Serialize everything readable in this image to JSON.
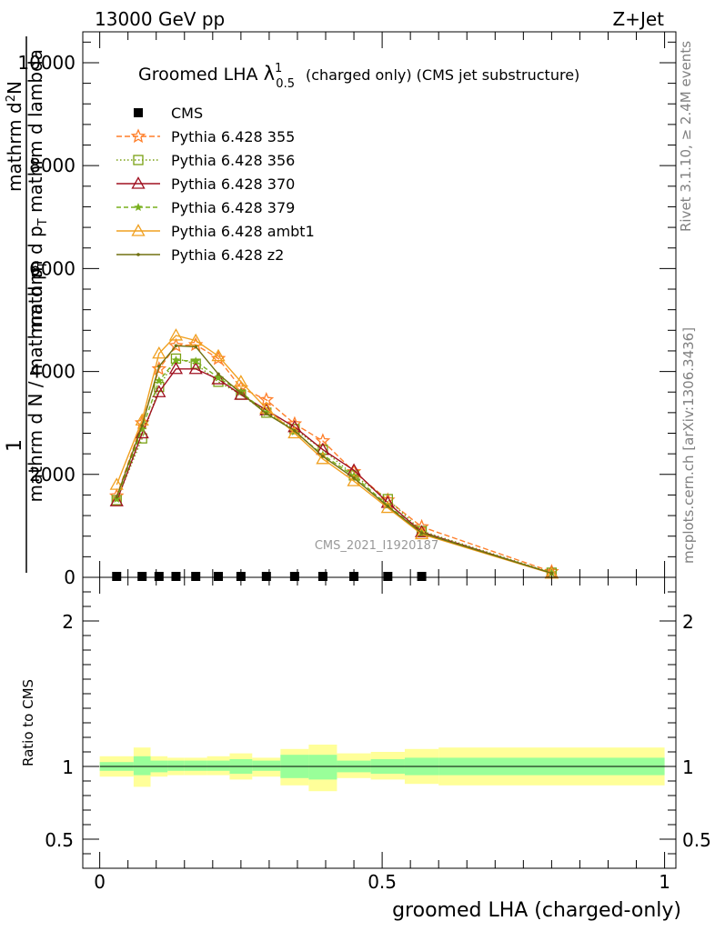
{
  "header": {
    "energy_label": "13000 GeV pp",
    "process_label": "Z+Jet"
  },
  "side_notes": {
    "rivet": "Rivet 3.1.10, ≥ 2.4M events",
    "mcplots": "mcplots.cern.ch [arXiv:1306.3436]"
  },
  "watermark": "CMS_2021_I1920187",
  "chart_data": [
    {
      "type": "line",
      "title_main": "Groomed LHA ",
      "title_symbol": "λ",
      "title_sup": "1",
      "title_sub": "0.5",
      "title_suffix": "(charged only) (CMS jet substructure)",
      "ylabel_left_num": "1",
      "ylabel_left_den": "mathrm d N / mathrm d p",
      "ylabel_left_den_sub": "T",
      "ylabel_right_num": "mathrm d",
      "ylabel_right_num_sup": "2",
      "ylabel_right_num_tail": "N",
      "ylabel_right_den": "mathrm d p",
      "ylabel_right_den_sub": "T",
      "ylabel_right_den_tail": " mathrm d lambda",
      "ylim": [
        0,
        10600
      ],
      "xlim": [
        -0.03,
        1.02
      ],
      "yticks": [
        {
          "value": 0,
          "label": "0"
        },
        {
          "value": 2000,
          "label": "2000"
        },
        {
          "value": 4000,
          "label": "4000"
        },
        {
          "value": 6000,
          "label": "6000"
        },
        {
          "value": 8000,
          "label": "8000"
        },
        {
          "value": 10000,
          "label": "10000"
        }
      ],
      "legend_position": "top-left",
      "cms_x": [
        0.03,
        0.075,
        0.105,
        0.135,
        0.17,
        0.21,
        0.25,
        0.295,
        0.345,
        0.395,
        0.45,
        0.51,
        0.57
      ],
      "cms_y": [
        0,
        0,
        0,
        0,
        0,
        0,
        0,
        0,
        0,
        0,
        0,
        0,
        0
      ],
      "x": [
        0.03,
        0.075,
        0.105,
        0.135,
        0.17,
        0.21,
        0.25,
        0.295,
        0.345,
        0.395,
        0.45,
        0.51,
        0.57,
        0.8
      ],
      "series": [
        {
          "name": "CMS",
          "color": "#000000",
          "marker": "square-filled",
          "dash": "none"
        },
        {
          "name": "Pythia 6.428 355",
          "color": "#ff7f2a",
          "marker": "star",
          "dash": "6,3",
          "values": [
            1580,
            3000,
            4050,
            4500,
            4520,
            4250,
            3680,
            3450,
            2980,
            2650,
            2050,
            1500,
            980,
            110
          ]
        },
        {
          "name": "Pythia 6.428 356",
          "color": "#7aa013",
          "marker": "square-open",
          "dash": "1.5,2.5",
          "values": [
            1500,
            2700,
            3700,
            4250,
            4150,
            3800,
            3550,
            3200,
            2880,
            2480,
            1980,
            1520,
            900,
            90
          ]
        },
        {
          "name": "Pythia 6.428 370",
          "color": "#a01020",
          "marker": "triangle-open",
          "dash": "none",
          "values": [
            1480,
            2800,
            3600,
            4050,
            4050,
            3850,
            3550,
            3250,
            2920,
            2480,
            2080,
            1450,
            880,
            80
          ]
        },
        {
          "name": "Pythia 6.428 379",
          "color": "#78b01e",
          "marker": "star-small",
          "dash": "5,3",
          "values": [
            1520,
            2880,
            3820,
            4220,
            4200,
            3880,
            3600,
            3200,
            2830,
            2380,
            1970,
            1400,
            870,
            85
          ]
        },
        {
          "name": "Pythia 6.428 ambt1",
          "color": "#f0a020",
          "marker": "triangle-open",
          "dash": "none",
          "values": [
            1800,
            3050,
            4350,
            4700,
            4600,
            4300,
            3800,
            3280,
            2800,
            2300,
            1870,
            1350,
            840,
            75
          ]
        },
        {
          "name": "Pythia 6.428 z2",
          "color": "#707010",
          "marker": "dot",
          "dash": "none",
          "values": [
            1560,
            2950,
            4100,
            4500,
            4480,
            3950,
            3580,
            3180,
            2850,
            2350,
            1930,
            1380,
            860,
            80
          ]
        }
      ]
    },
    {
      "type": "area",
      "ylabel": "Ratio to CMS",
      "xlabel": "groomed LHA (charged-only)",
      "ylim": [
        0.3,
        2.3
      ],
      "xlim": [
        -0.03,
        1.02
      ],
      "xticks": [
        {
          "value": 0,
          "label": "0"
        },
        {
          "value": 0.5,
          "label": "0.5"
        },
        {
          "value": 1,
          "label": "1"
        }
      ],
      "yticks": [
        {
          "value": 0.5,
          "label": "0.5"
        },
        {
          "value": 1,
          "label": "1"
        },
        {
          "value": 2,
          "label": "2"
        }
      ],
      "reference_line": 1,
      "bin_edges": [
        0,
        0.06,
        0.09,
        0.12,
        0.15,
        0.19,
        0.23,
        0.27,
        0.32,
        0.37,
        0.42,
        0.48,
        0.54,
        0.6,
        1.0
      ],
      "band_inner_lo": [
        0.97,
        0.94,
        0.96,
        0.97,
        0.97,
        0.97,
        0.95,
        0.97,
        0.92,
        0.91,
        0.96,
        0.95,
        0.94,
        0.94
      ],
      "band_inner_hi": [
        1.03,
        1.07,
        1.04,
        1.04,
        1.04,
        1.04,
        1.05,
        1.04,
        1.08,
        1.08,
        1.04,
        1.05,
        1.06,
        1.06
      ],
      "band_outer_lo": [
        0.93,
        0.86,
        0.93,
        0.94,
        0.94,
        0.94,
        0.91,
        0.93,
        0.87,
        0.83,
        0.92,
        0.91,
        0.88,
        0.87
      ],
      "band_outer_hi": [
        1.07,
        1.13,
        1.07,
        1.06,
        1.06,
        1.07,
        1.09,
        1.06,
        1.12,
        1.15,
        1.09,
        1.1,
        1.12,
        1.13
      ],
      "inner_color": "#99ff99",
      "outer_color": "#ffff99"
    }
  ]
}
